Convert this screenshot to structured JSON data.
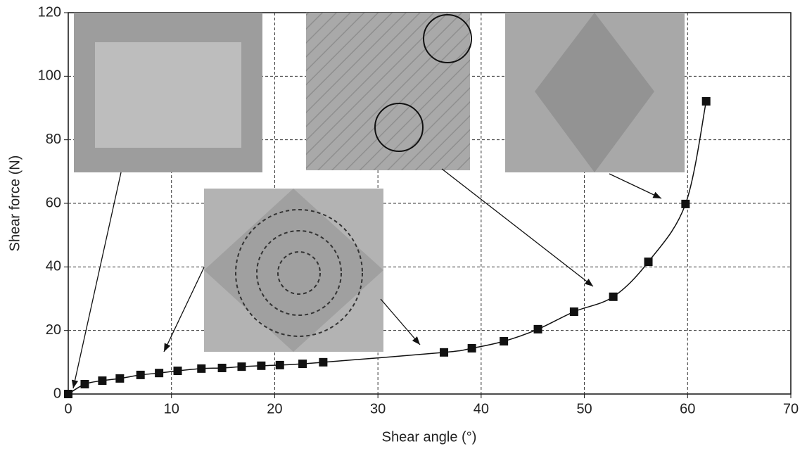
{
  "chart_data": {
    "type": "line",
    "x": [
      0,
      1.6,
      3.3,
      5.0,
      7.0,
      8.8,
      10.6,
      12.9,
      14.9,
      16.8,
      18.7,
      20.5,
      22.7,
      24.7,
      36.4,
      39.1,
      42.2,
      45.5,
      49.0,
      52.8,
      56.2,
      59.8,
      61.8
    ],
    "values": [
      0,
      3.1,
      4.2,
      4.9,
      6.0,
      6.6,
      7.3,
      8.0,
      8.2,
      8.6,
      8.9,
      9.1,
      9.5,
      10.0,
      13.1,
      14.4,
      16.6,
      20.4,
      25.9,
      30.6,
      41.6,
      59.8,
      92.1
    ],
    "color": "#111111",
    "x_label": "Shear angle (°)",
    "y_label": "Shear force (N)",
    "xlim": [
      0,
      70
    ],
    "xticks": [
      0,
      10,
      20,
      30,
      40,
      50,
      60,
      70
    ],
    "ylim": [
      0,
      120
    ],
    "yticks": [
      0,
      20,
      40,
      60,
      80,
      100,
      120
    ],
    "grid": true
  }
}
